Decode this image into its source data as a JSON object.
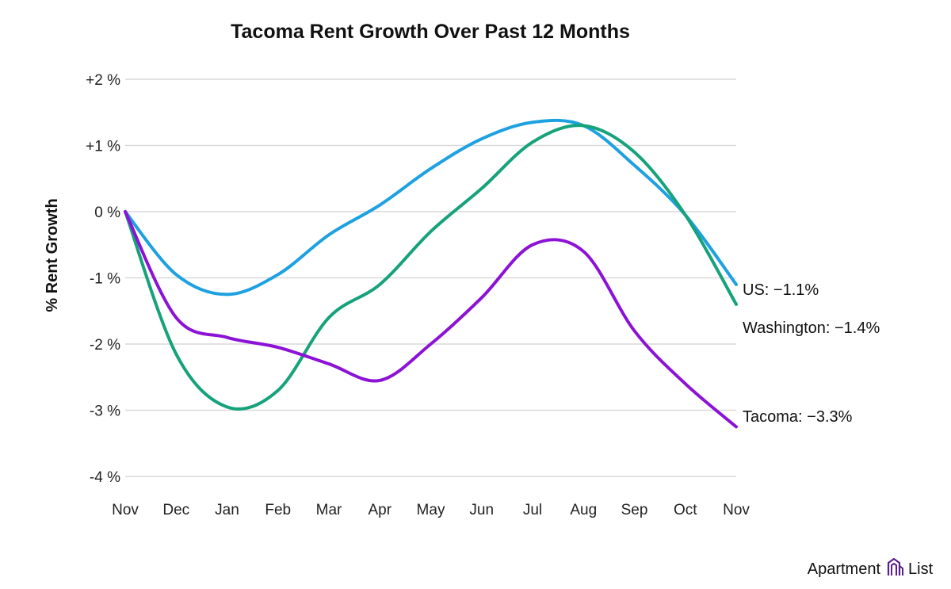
{
  "chart_data": {
    "type": "line",
    "title": "Tacoma Rent Growth Over Past 12 Months",
    "xlabel": "",
    "ylabel": "% Rent Growth",
    "categories": [
      "Nov",
      "Dec",
      "Jan",
      "Feb",
      "Mar",
      "Apr",
      "May",
      "Jun",
      "Jul",
      "Aug",
      "Sep",
      "Oct",
      "Nov"
    ],
    "ylim": [
      -4,
      2
    ],
    "yticks": [
      2,
      1,
      0,
      -1,
      -2,
      -3,
      -4
    ],
    "ytick_labels": [
      "+2 %",
      "+1 %",
      "0 %",
      "-1 %",
      "-2 %",
      "-3 %",
      "-4 %"
    ],
    "grid": true,
    "series": [
      {
        "name": "US",
        "end_label": "US: −1.1%",
        "color": "#1ea1e0",
        "values": [
          0,
          -0.95,
          -1.25,
          -0.95,
          -0.35,
          0.1,
          0.65,
          1.1,
          1.35,
          1.3,
          0.7,
          -0.05,
          -1.1
        ]
      },
      {
        "name": "Washington",
        "end_label": "Washington: −1.4%",
        "color": "#16a27b",
        "values": [
          0,
          -2.15,
          -2.95,
          -2.7,
          -1.6,
          -1.1,
          -0.3,
          0.35,
          1.05,
          1.3,
          0.9,
          -0.05,
          -1.4
        ]
      },
      {
        "name": "Tacoma",
        "end_label": "Tacoma: −3.3%",
        "color": "#8b12d6",
        "values": [
          0,
          -1.6,
          -1.9,
          -2.05,
          -2.3,
          -2.55,
          -2.0,
          -1.3,
          -0.5,
          -0.6,
          -1.8,
          -2.6,
          -3.25
        ]
      }
    ]
  },
  "brand": {
    "name_left": "Apartment",
    "name_right": "List",
    "logo_icon": "apartment-list-logo-icon"
  }
}
